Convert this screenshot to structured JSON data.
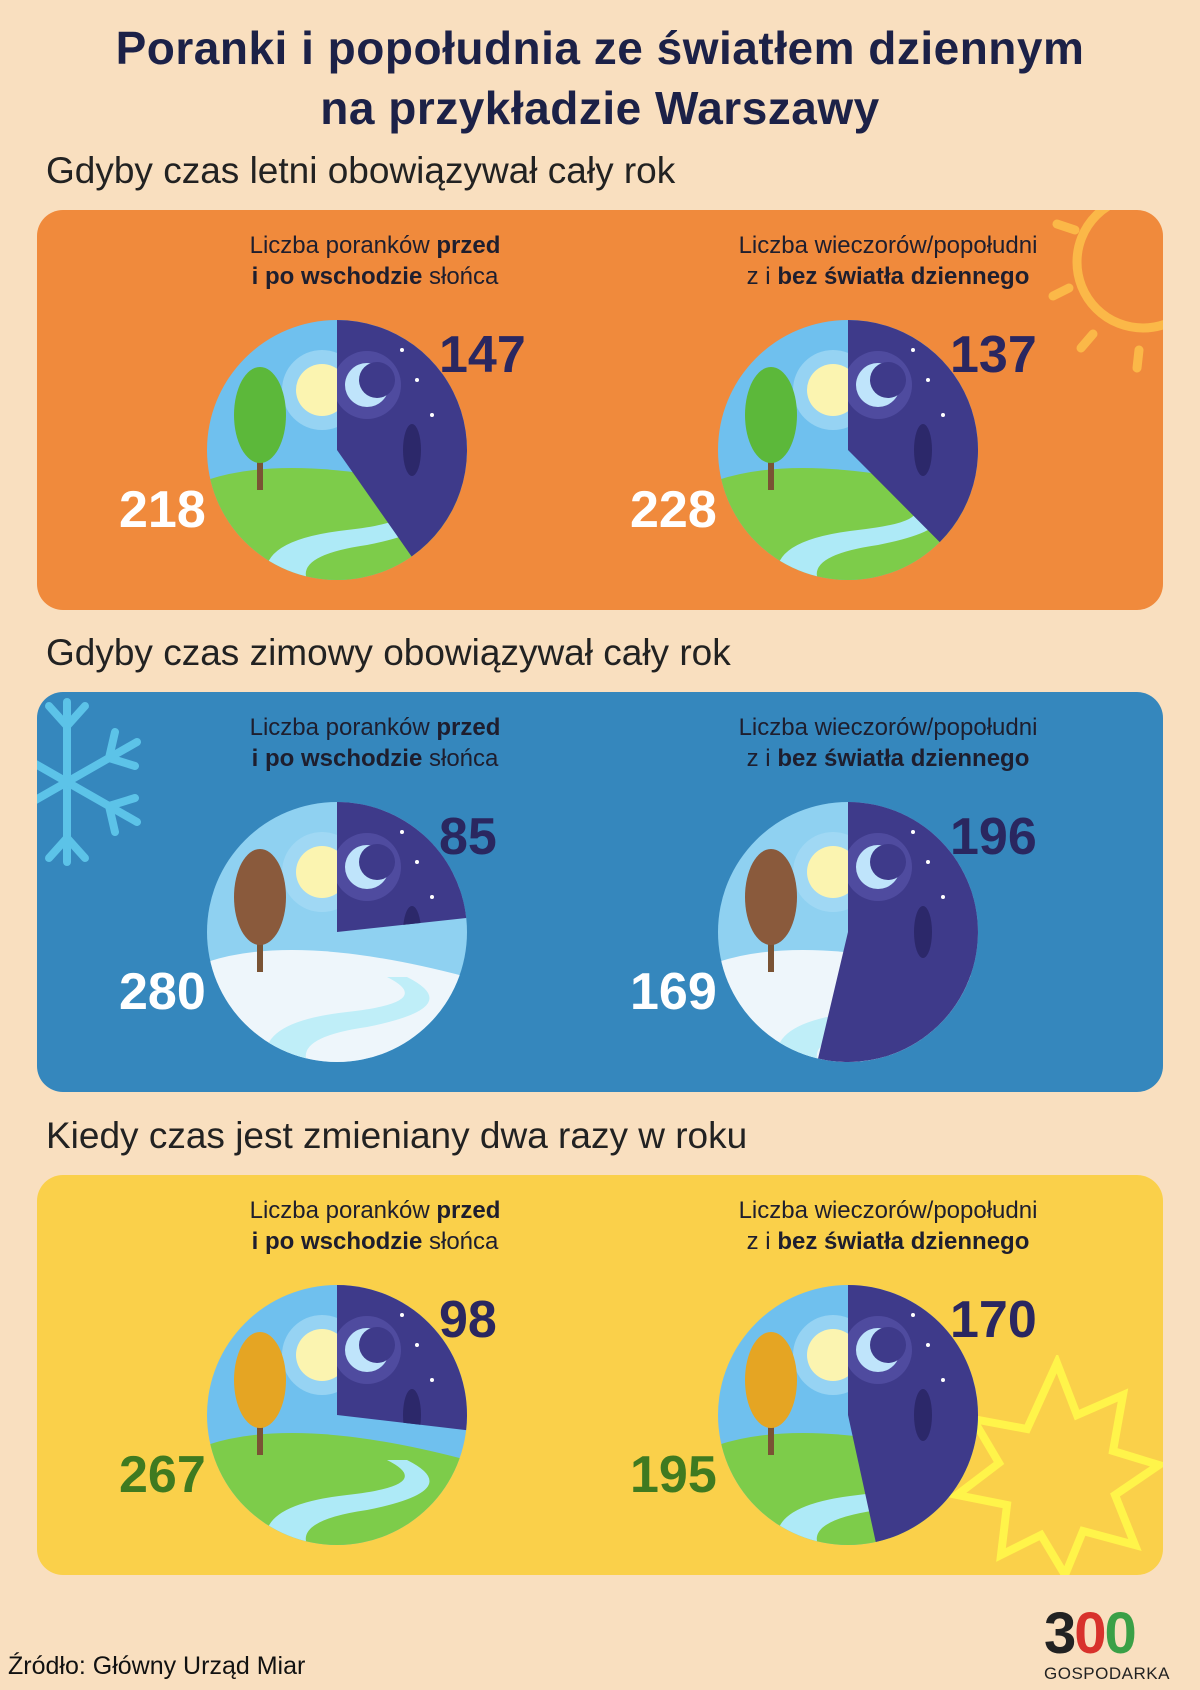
{
  "title": {
    "line1": "Poranki i popołudnia ze światłem dziennym",
    "line2": "na przykładzie Warszawy"
  },
  "labels": {
    "mornings": {
      "pre": "Liczba poranków ",
      "b1": "przed",
      "b2": "i po wschodzie",
      "post": " słońca"
    },
    "evenings": {
      "pre": "Liczba wieczorów/popołudni",
      "zi": "z i ",
      "b": "bez światła dziennego"
    }
  },
  "colors": {
    "summer": "#f08a3c",
    "winter": "#3587bd",
    "both": "#fad04a",
    "night": "#3e3a8a",
    "night_number": "#2a2760",
    "day_number_light": "#ffffff",
    "day_number_green": "#3f7a20"
  },
  "chart_data": [
    {
      "type": "pie",
      "title": "Gdyby czas letni obowiązywał cały rok",
      "charts": [
        {
          "label": "Liczba poranków przed i po wschodzie słońca",
          "categories": [
            "po wschodzie słońca",
            "przed wschodem słońca"
          ],
          "values": [
            218,
            147
          ]
        },
        {
          "label": "Liczba wieczorów/popołudni z i bez światła dziennego",
          "categories": [
            "ze światłem dziennym",
            "bez światła dziennego"
          ],
          "values": [
            228,
            137
          ]
        }
      ]
    },
    {
      "type": "pie",
      "title": "Gdyby czas zimowy obowiązywał cały rok",
      "charts": [
        {
          "label": "Liczba poranków przed i po wschodzie słońca",
          "categories": [
            "po wschodzie słońca",
            "przed wschodem słońca"
          ],
          "values": [
            280,
            85
          ]
        },
        {
          "label": "Liczba wieczorów/popołudni z i bez światła dziennego",
          "categories": [
            "ze światłem dziennym",
            "bez światła dziennego"
          ],
          "values": [
            169,
            196
          ]
        }
      ]
    },
    {
      "type": "pie",
      "title": "Kiedy czas jest zmieniany dwa razy w roku",
      "charts": [
        {
          "label": "Liczba poranków przed i po wschodzie słońca",
          "categories": [
            "po wschodzie słońca",
            "przed wschodem słońca"
          ],
          "values": [
            267,
            98
          ]
        },
        {
          "label": "Liczba wieczorów/popołudni z i bez światła dziennego",
          "categories": [
            "ze światłem dziennym",
            "bez światła dziennego"
          ],
          "values": [
            195,
            170
          ]
        }
      ]
    }
  ],
  "source": "Źródło: Główny Urząd Miar",
  "logo": {
    "d1": "3",
    "d2": "0",
    "d3": "0",
    "text": "GOSPODARKA"
  }
}
